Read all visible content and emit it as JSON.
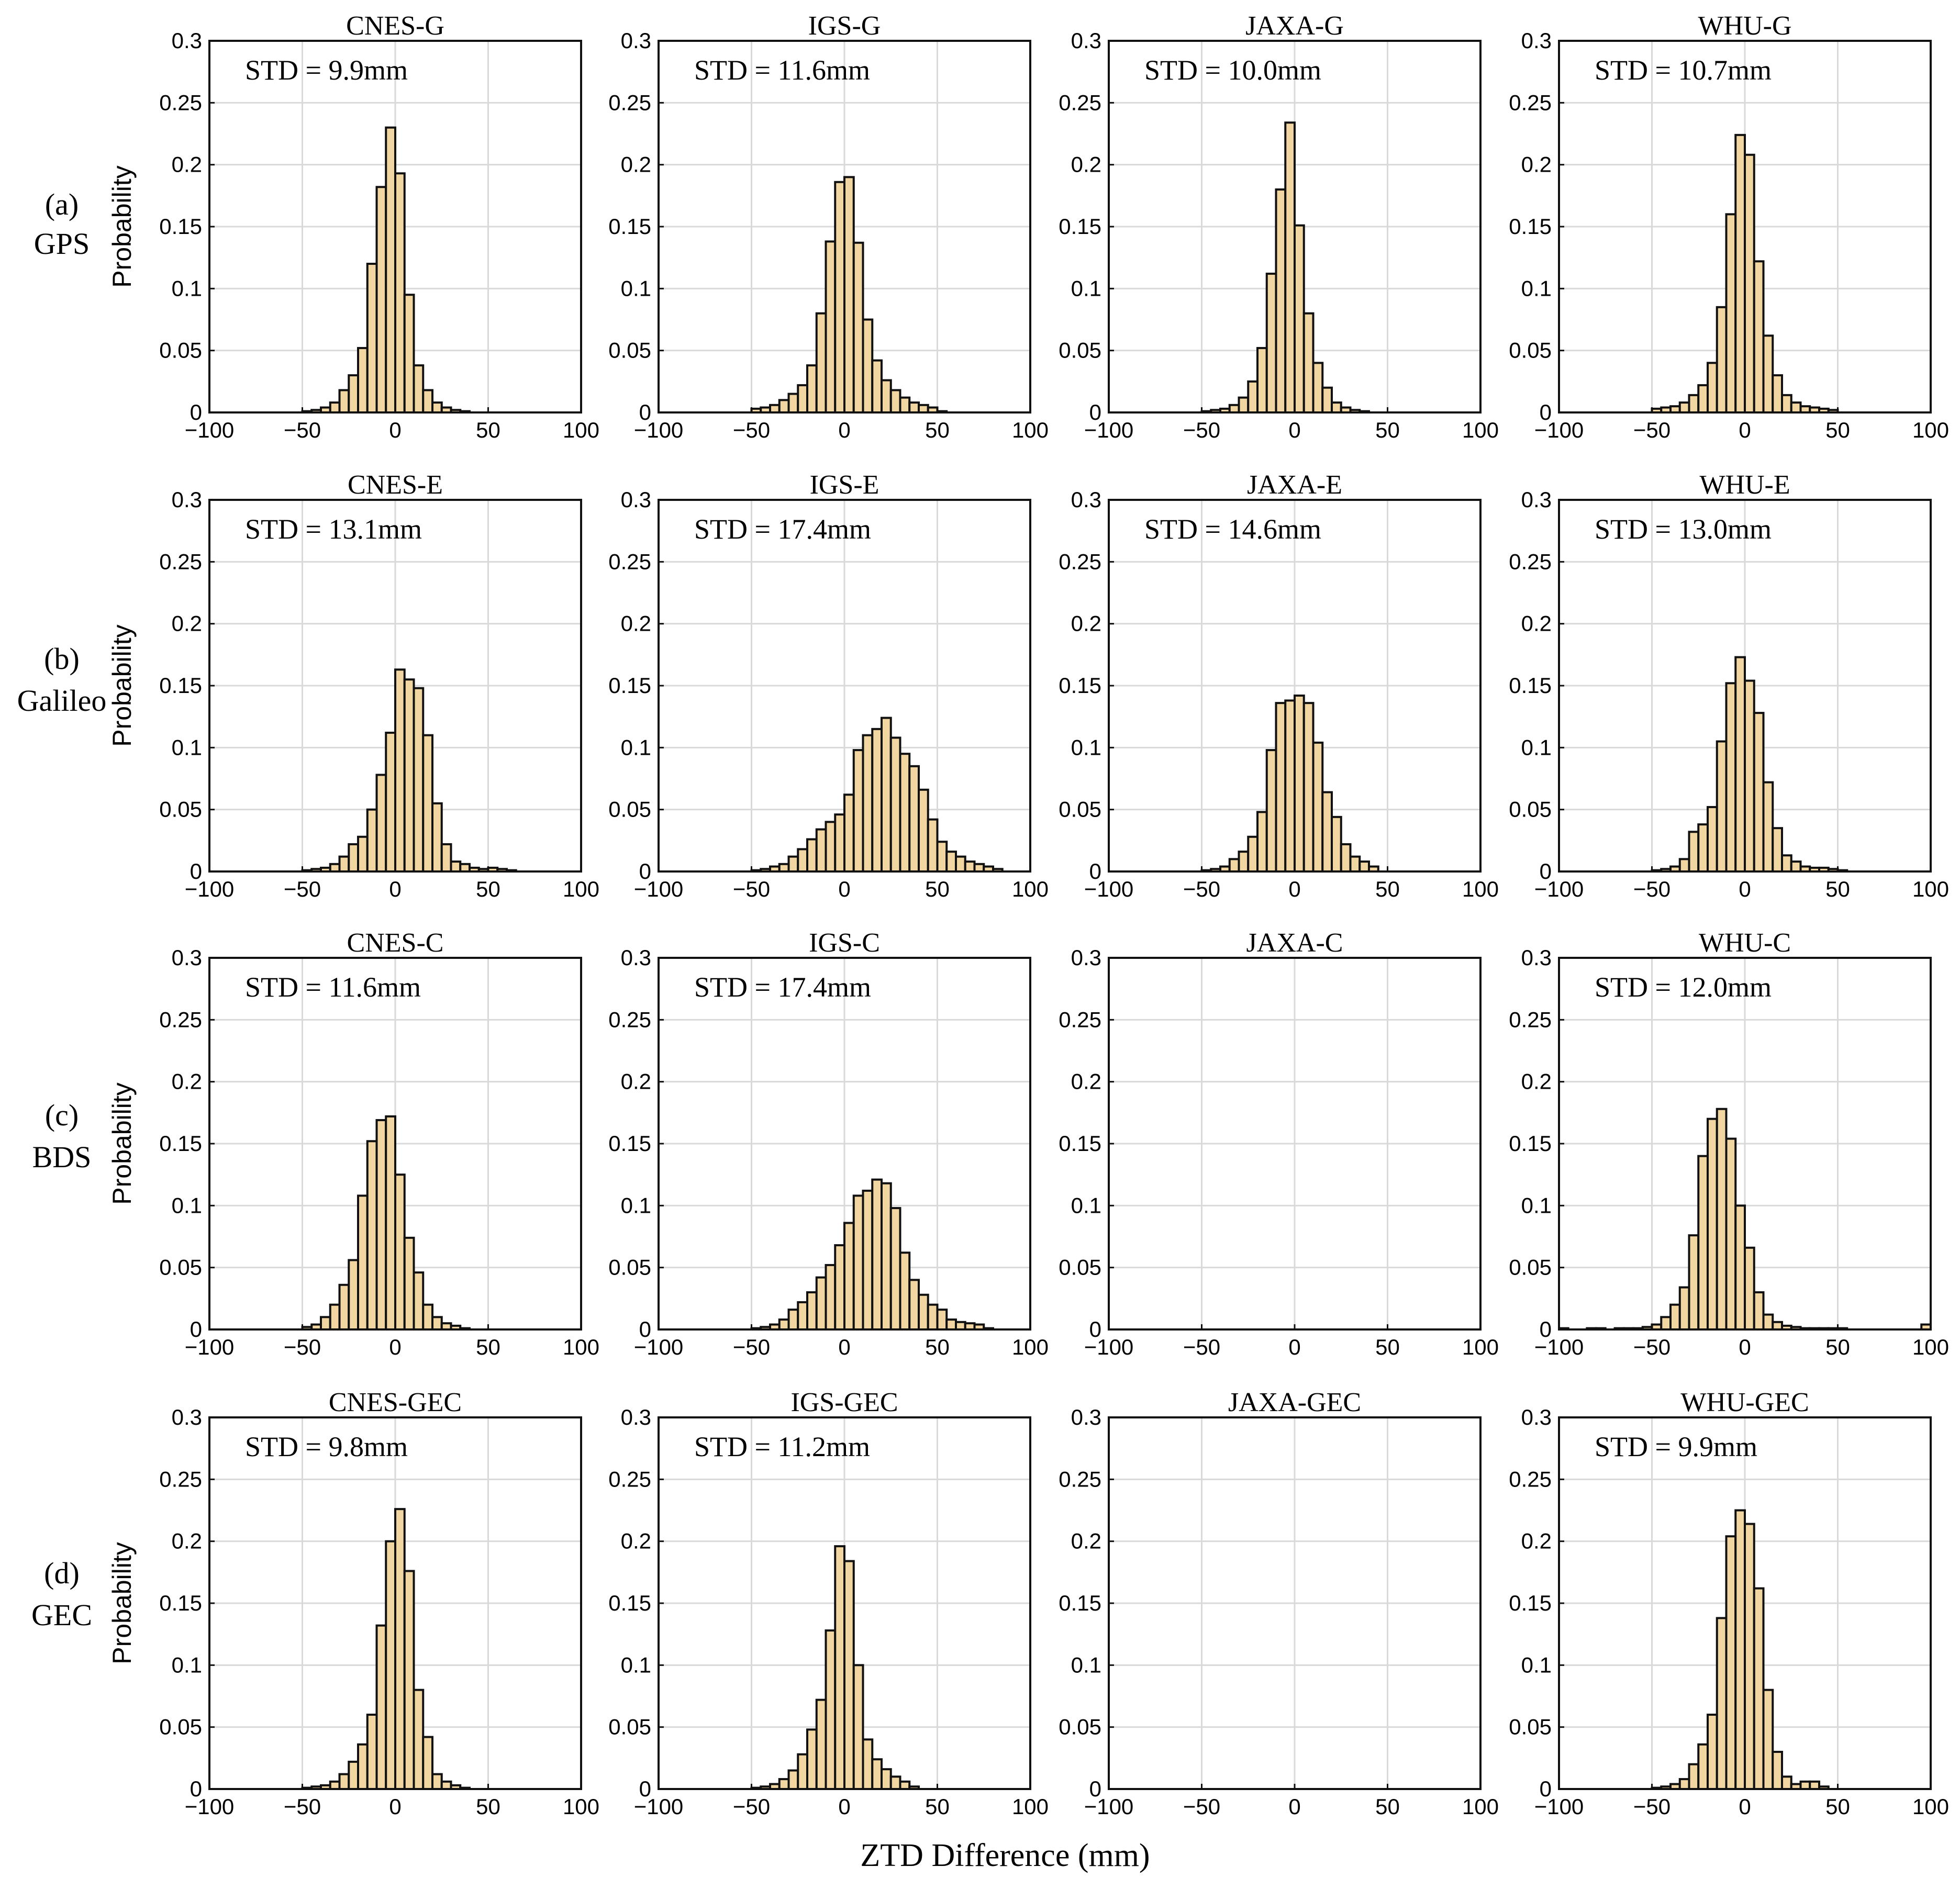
{
  "figure": {
    "x_axis_label": "ZTD Difference (mm)",
    "y_axis_label": "Probability"
  },
  "rows": [
    {
      "letter": "(a)",
      "system": "GPS"
    },
    {
      "letter": "(b)",
      "system": "Galileo"
    },
    {
      "letter": "(c)",
      "system": "BDS"
    },
    {
      "letter": "(d)",
      "system": "GEC"
    }
  ],
  "colors": {
    "bar_fill": "#f2d6a2",
    "bar_edge": "#111111",
    "grid": "#d9d9d9"
  },
  "chart_data": [
    {
      "type": "bar",
      "title": "CNES-G",
      "std_label": "STD = 9.9mm",
      "xlim": [
        -100,
        100
      ],
      "ylim": [
        0,
        0.3
      ],
      "bin_edges_start": -50,
      "bin_width": 5,
      "xticks": [
        -100,
        -50,
        0,
        50,
        100
      ],
      "xtick_labels": [
        "−100",
        "−50",
        "0",
        "50",
        "100"
      ],
      "yticks": [
        0,
        0.05,
        0.1,
        0.15,
        0.2,
        0.25,
        0.3
      ],
      "ytick_labels": [
        "0",
        "0.05",
        "0.1",
        "0.15",
        "0.2",
        "0.25",
        "0.3"
      ],
      "values": [
        0.001,
        0.002,
        0.004,
        0.008,
        0.018,
        0.03,
        0.052,
        0.12,
        0.182,
        0.23,
        0.193,
        0.095,
        0.038,
        0.018,
        0.008,
        0.004,
        0.002,
        0.001
      ]
    },
    {
      "type": "bar",
      "title": "IGS-G",
      "std_label": "STD = 11.6mm",
      "xlim": [
        -100,
        100
      ],
      "ylim": [
        0,
        0.3
      ],
      "bin_edges_start": -50,
      "bin_width": 5,
      "xticks": [
        -100,
        -50,
        0,
        50,
        100
      ],
      "xtick_labels": [
        "−100",
        "−50",
        "0",
        "50",
        "100"
      ],
      "yticks": [
        0,
        0.05,
        0.1,
        0.15,
        0.2,
        0.25,
        0.3
      ],
      "ytick_labels": [
        "0",
        "0.05",
        "0.1",
        "0.15",
        "0.2",
        "0.25",
        "0.3"
      ],
      "values": [
        0.003,
        0.004,
        0.006,
        0.01,
        0.015,
        0.022,
        0.038,
        0.08,
        0.138,
        0.186,
        0.19,
        0.137,
        0.075,
        0.042,
        0.026,
        0.018,
        0.012,
        0.008,
        0.006,
        0.004,
        0.001
      ]
    },
    {
      "type": "bar",
      "title": "JAXA-G",
      "std_label": "STD = 10.0mm",
      "xlim": [
        -100,
        100
      ],
      "ylim": [
        0,
        0.3
      ],
      "bin_edges_start": -50,
      "bin_width": 5,
      "xticks": [
        -100,
        -50,
        0,
        50,
        100
      ],
      "xtick_labels": [
        "−100",
        "−50",
        "0",
        "50",
        "100"
      ],
      "yticks": [
        0,
        0.05,
        0.1,
        0.15,
        0.2,
        0.25,
        0.3
      ],
      "ytick_labels": [
        "0",
        "0.05",
        "0.1",
        "0.15",
        "0.2",
        "0.25",
        "0.3"
      ],
      "values": [
        0.001,
        0.002,
        0.003,
        0.006,
        0.012,
        0.025,
        0.052,
        0.112,
        0.18,
        0.234,
        0.151,
        0.08,
        0.04,
        0.02,
        0.008,
        0.004,
        0.002,
        0.001
      ]
    },
    {
      "type": "bar",
      "title": "WHU-G",
      "std_label": "STD = 10.7mm",
      "xlim": [
        -100,
        100
      ],
      "ylim": [
        0,
        0.3
      ],
      "bin_edges_start": -50,
      "bin_width": 5,
      "xticks": [
        -100,
        -50,
        0,
        50,
        100
      ],
      "xtick_labels": [
        "−100",
        "−50",
        "0",
        "50",
        "100"
      ],
      "yticks": [
        0,
        0.05,
        0.1,
        0.15,
        0.2,
        0.25,
        0.3
      ],
      "ytick_labels": [
        "0",
        "0.05",
        "0.1",
        "0.15",
        "0.2",
        "0.25",
        "0.3"
      ],
      "values": [
        0.003,
        0.004,
        0.005,
        0.008,
        0.014,
        0.022,
        0.04,
        0.085,
        0.16,
        0.224,
        0.208,
        0.122,
        0.062,
        0.03,
        0.014,
        0.008,
        0.005,
        0.004,
        0.003,
        0.002
      ]
    },
    {
      "type": "bar",
      "title": "CNES-E",
      "std_label": "STD = 13.1mm",
      "xlim": [
        -100,
        100
      ],
      "ylim": [
        0,
        0.3
      ],
      "bin_edges_start": -50,
      "bin_width": 5,
      "xticks": [
        -100,
        -50,
        0,
        50,
        100
      ],
      "xtick_labels": [
        "−100",
        "−50",
        "0",
        "50",
        "100"
      ],
      "yticks": [
        0,
        0.05,
        0.1,
        0.15,
        0.2,
        0.25,
        0.3
      ],
      "ytick_labels": [
        "0",
        "0.05",
        "0.1",
        "0.15",
        "0.2",
        "0.25",
        "0.3"
      ],
      "values": [
        0.001,
        0.002,
        0.003,
        0.006,
        0.012,
        0.022,
        0.028,
        0.05,
        0.078,
        0.112,
        0.163,
        0.155,
        0.148,
        0.11,
        0.055,
        0.022,
        0.008,
        0.006,
        0.003,
        0.002,
        0.003,
        0.002,
        0.001
      ]
    },
    {
      "type": "bar",
      "title": "IGS-E",
      "std_label": "STD = 17.4mm",
      "xlim": [
        -100,
        100
      ],
      "ylim": [
        0,
        0.3
      ],
      "bin_edges_start": -50,
      "bin_width": 5,
      "xticks": [
        -100,
        -50,
        0,
        50,
        100
      ],
      "xtick_labels": [
        "−100",
        "−50",
        "0",
        "50",
        "100"
      ],
      "yticks": [
        0,
        0.05,
        0.1,
        0.15,
        0.2,
        0.25,
        0.3
      ],
      "ytick_labels": [
        "0",
        "0.05",
        "0.1",
        "0.15",
        "0.2",
        "0.25",
        "0.3"
      ],
      "values": [
        0.001,
        0.002,
        0.004,
        0.006,
        0.012,
        0.018,
        0.026,
        0.034,
        0.04,
        0.046,
        0.062,
        0.098,
        0.11,
        0.115,
        0.124,
        0.108,
        0.095,
        0.085,
        0.066,
        0.042,
        0.024,
        0.016,
        0.012,
        0.008,
        0.006,
        0.004,
        0.002
      ]
    },
    {
      "type": "bar",
      "title": "JAXA-E",
      "std_label": "STD = 14.6mm",
      "xlim": [
        -100,
        100
      ],
      "ylim": [
        0,
        0.3
      ],
      "bin_edges_start": -50,
      "bin_width": 5,
      "xticks": [
        -100,
        -50,
        0,
        50,
        100
      ],
      "xtick_labels": [
        "−100",
        "−50",
        "0",
        "50",
        "100"
      ],
      "yticks": [
        0,
        0.05,
        0.1,
        0.15,
        0.2,
        0.25,
        0.3
      ],
      "ytick_labels": [
        "0",
        "0.05",
        "0.1",
        "0.15",
        "0.2",
        "0.25",
        "0.3"
      ],
      "values": [
        0.001,
        0.002,
        0.004,
        0.01,
        0.016,
        0.028,
        0.048,
        0.098,
        0.136,
        0.138,
        0.142,
        0.136,
        0.104,
        0.064,
        0.044,
        0.022,
        0.012,
        0.008,
        0.004
      ]
    },
    {
      "type": "bar",
      "title": "WHU-E",
      "std_label": "STD = 13.0mm",
      "xlim": [
        -100,
        100
      ],
      "ylim": [
        0,
        0.3
      ],
      "bin_edges_start": -50,
      "bin_width": 5,
      "xticks": [
        -100,
        -50,
        0,
        50,
        100
      ],
      "xtick_labels": [
        "−100",
        "−50",
        "0",
        "50",
        "100"
      ],
      "yticks": [
        0,
        0.05,
        0.1,
        0.15,
        0.2,
        0.25,
        0.3
      ],
      "ytick_labels": [
        "0",
        "0.05",
        "0.1",
        "0.15",
        "0.2",
        "0.25",
        "0.3"
      ],
      "values": [
        0.001,
        0.002,
        0.004,
        0.01,
        0.032,
        0.038,
        0.052,
        0.105,
        0.152,
        0.173,
        0.154,
        0.128,
        0.072,
        0.035,
        0.013,
        0.008,
        0.004,
        0.003,
        0.003,
        0.002,
        0.001
      ]
    },
    {
      "type": "bar",
      "title": "CNES-C",
      "std_label": "STD = 11.6mm",
      "xlim": [
        -100,
        100
      ],
      "ylim": [
        0,
        0.3
      ],
      "bin_edges_start": -50,
      "bin_width": 5,
      "xticks": [
        -100,
        -50,
        0,
        50,
        100
      ],
      "xtick_labels": [
        "−100",
        "−50",
        "0",
        "50",
        "100"
      ],
      "yticks": [
        0,
        0.05,
        0.1,
        0.15,
        0.2,
        0.25,
        0.3
      ],
      "ytick_labels": [
        "0",
        "0.05",
        "0.1",
        "0.15",
        "0.2",
        "0.25",
        "0.3"
      ],
      "values": [
        0.002,
        0.004,
        0.01,
        0.02,
        0.036,
        0.056,
        0.108,
        0.152,
        0.169,
        0.172,
        0.125,
        0.074,
        0.046,
        0.02,
        0.01,
        0.005,
        0.003,
        0.001
      ]
    },
    {
      "type": "bar",
      "title": "IGS-C",
      "std_label": "STD = 17.4mm",
      "xlim": [
        -100,
        100
      ],
      "ylim": [
        0,
        0.3
      ],
      "bin_edges_start": -50,
      "bin_width": 5,
      "xticks": [
        -100,
        -50,
        0,
        50,
        100
      ],
      "xtick_labels": [
        "−100",
        "−50",
        "0",
        "50",
        "100"
      ],
      "yticks": [
        0,
        0.05,
        0.1,
        0.15,
        0.2,
        0.25,
        0.3
      ],
      "ytick_labels": [
        "0",
        "0.05",
        "0.1",
        "0.15",
        "0.2",
        "0.25",
        "0.3"
      ],
      "values": [
        0.001,
        0.002,
        0.004,
        0.008,
        0.016,
        0.022,
        0.03,
        0.042,
        0.052,
        0.068,
        0.086,
        0.108,
        0.112,
        0.121,
        0.118,
        0.098,
        0.062,
        0.04,
        0.028,
        0.02,
        0.016,
        0.008,
        0.006,
        0.005,
        0.004,
        0.001
      ]
    },
    {
      "type": "bar",
      "title": "JAXA-C",
      "std_label": "",
      "xlim": [
        -100,
        100
      ],
      "ylim": [
        0,
        0.3
      ],
      "bin_edges_start": -50,
      "bin_width": 5,
      "xticks": [
        -100,
        -50,
        0,
        50,
        100
      ],
      "xtick_labels": [
        "−100",
        "−50",
        "0",
        "50",
        "100"
      ],
      "yticks": [
        0,
        0.05,
        0.1,
        0.15,
        0.2,
        0.25,
        0.3
      ],
      "ytick_labels": [
        "0",
        "0.05",
        "0.1",
        "0.15",
        "0.2",
        "0.25",
        "0.3"
      ],
      "values": []
    },
    {
      "type": "bar",
      "title": "WHU-C",
      "std_label": "STD = 12.0mm",
      "xlim": [
        -100,
        100
      ],
      "ylim": [
        0,
        0.3
      ],
      "bin_edges_start": -100,
      "bin_width": 5,
      "xticks": [
        -100,
        -50,
        0,
        50,
        100
      ],
      "xtick_labels": [
        "−100",
        "−50",
        "0",
        "50",
        "100"
      ],
      "yticks": [
        0,
        0.05,
        0.1,
        0.15,
        0.2,
        0.25,
        0.3
      ],
      "ytick_labels": [
        "0",
        "0.05",
        "0.1",
        "0.15",
        "0.2",
        "0.25",
        "0.3"
      ],
      "values": [
        0.001,
        0,
        0,
        0.001,
        0.001,
        0,
        0.001,
        0.001,
        0.001,
        0.002,
        0.004,
        0.01,
        0.02,
        0.034,
        0.076,
        0.14,
        0.17,
        0.178,
        0.154,
        0.1,
        0.066,
        0.03,
        0.012,
        0.006,
        0.003,
        0.002,
        0.001,
        0.001,
        0.001,
        0.001,
        0.001,
        0,
        0,
        0,
        0,
        0,
        0,
        0,
        0,
        0.004
      ]
    },
    {
      "type": "bar",
      "title": "CNES-GEC",
      "std_label": "STD = 9.8mm",
      "xlim": [
        -100,
        100
      ],
      "ylim": [
        0,
        0.3
      ],
      "bin_edges_start": -50,
      "bin_width": 5,
      "xticks": [
        -100,
        -50,
        0,
        50,
        100
      ],
      "xtick_labels": [
        "−100",
        "−50",
        "0",
        "50",
        "100"
      ],
      "yticks": [
        0,
        0.05,
        0.1,
        0.15,
        0.2,
        0.25,
        0.3
      ],
      "ytick_labels": [
        "0",
        "0.05",
        "0.1",
        "0.15",
        "0.2",
        "0.25",
        "0.3"
      ],
      "values": [
        0.001,
        0.002,
        0.003,
        0.006,
        0.012,
        0.022,
        0.036,
        0.06,
        0.132,
        0.2,
        0.226,
        0.176,
        0.08,
        0.042,
        0.012,
        0.006,
        0.003,
        0.001
      ]
    },
    {
      "type": "bar",
      "title": "IGS-GEC",
      "std_label": "STD = 11.2mm",
      "xlim": [
        -100,
        100
      ],
      "ylim": [
        0,
        0.3
      ],
      "bin_edges_start": -50,
      "bin_width": 5,
      "xticks": [
        -100,
        -50,
        0,
        50,
        100
      ],
      "xtick_labels": [
        "−100",
        "−50",
        "0",
        "50",
        "100"
      ],
      "yticks": [
        0,
        0.05,
        0.1,
        0.15,
        0.2,
        0.25,
        0.3
      ],
      "ytick_labels": [
        "0",
        "0.05",
        "0.1",
        "0.15",
        "0.2",
        "0.25",
        "0.3"
      ],
      "values": [
        0.001,
        0.002,
        0.004,
        0.008,
        0.015,
        0.028,
        0.048,
        0.072,
        0.128,
        0.196,
        0.184,
        0.1,
        0.04,
        0.024,
        0.016,
        0.01,
        0.006,
        0.002
      ]
    },
    {
      "type": "bar",
      "title": "JAXA-GEC",
      "std_label": "",
      "xlim": [
        -100,
        100
      ],
      "ylim": [
        0,
        0.3
      ],
      "bin_edges_start": -50,
      "bin_width": 5,
      "xticks": [
        -100,
        -50,
        0,
        50,
        100
      ],
      "xtick_labels": [
        "−100",
        "−50",
        "0",
        "50",
        "100"
      ],
      "yticks": [
        0,
        0.05,
        0.1,
        0.15,
        0.2,
        0.25,
        0.3
      ],
      "ytick_labels": [
        "0",
        "0.05",
        "0.1",
        "0.15",
        "0.2",
        "0.25",
        "0.3"
      ],
      "values": []
    },
    {
      "type": "bar",
      "title": "WHU-GEC",
      "std_label": "STD = 9.9mm",
      "xlim": [
        -100,
        100
      ],
      "ylim": [
        0,
        0.3
      ],
      "bin_edges_start": -50,
      "bin_width": 5,
      "xticks": [
        -100,
        -50,
        0,
        50,
        100
      ],
      "xtick_labels": [
        "−100",
        "−50",
        "0",
        "50",
        "100"
      ],
      "yticks": [
        0,
        0.05,
        0.1,
        0.15,
        0.2,
        0.25,
        0.3
      ],
      "ytick_labels": [
        "0",
        "0.05",
        "0.1",
        "0.15",
        "0.2",
        "0.25",
        "0.3"
      ],
      "values": [
        0.001,
        0.002,
        0.004,
        0.008,
        0.02,
        0.036,
        0.06,
        0.138,
        0.204,
        0.225,
        0.214,
        0.162,
        0.08,
        0.03,
        0.01,
        0.004,
        0.006,
        0.006,
        0.002
      ]
    }
  ]
}
